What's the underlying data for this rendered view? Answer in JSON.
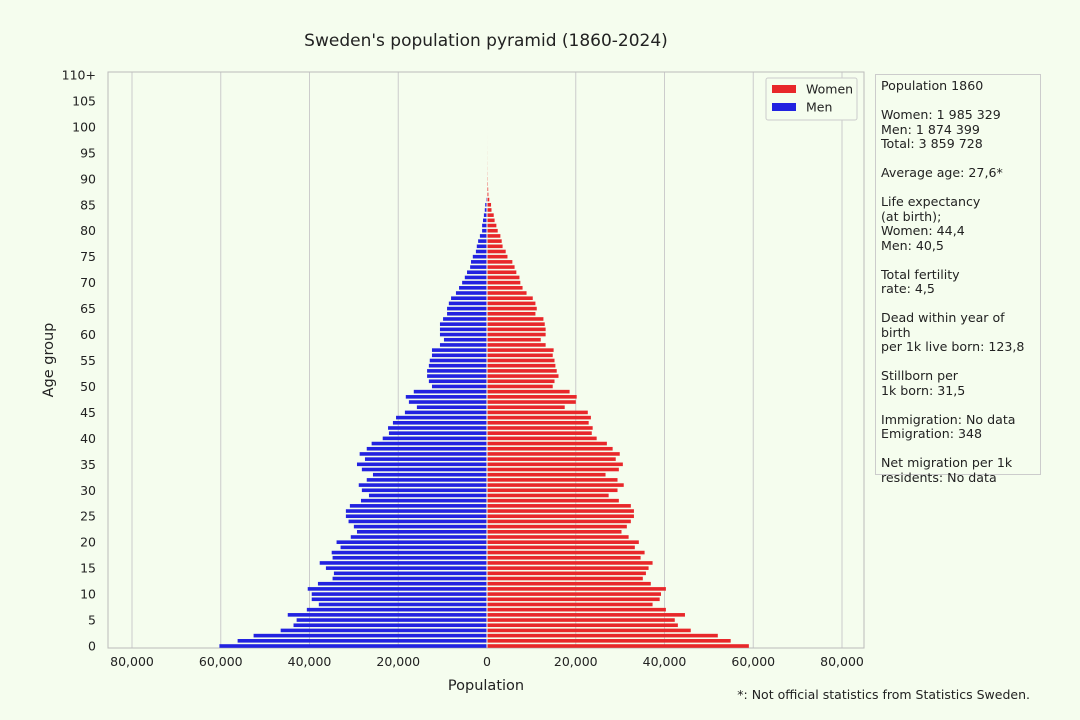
{
  "chart_data": {
    "type": "bar",
    "orientation": "horizontal",
    "title": "Sweden's population pyramid (1860-2024)",
    "xlabel": "Population",
    "ylabel": "Age group",
    "xlim": [
      -85000,
      85000
    ],
    "ylim": [
      0,
      110
    ],
    "x_ticks": [
      -80000,
      -60000,
      -40000,
      -20000,
      0,
      20000,
      40000,
      60000,
      80000
    ],
    "x_tick_labels": [
      "80,000",
      "60,000",
      "40,000",
      "20,000",
      "0",
      "20,000",
      "40,000",
      "60,000",
      "80,000"
    ],
    "y_ticks": [
      0,
      5,
      10,
      15,
      20,
      25,
      30,
      35,
      40,
      45,
      50,
      55,
      60,
      65,
      70,
      75,
      80,
      85,
      90,
      95,
      100,
      105,
      110
    ],
    "y_tick_labels": [
      "0",
      "5",
      "10",
      "15",
      "20",
      "25",
      "30",
      "35",
      "40",
      "45",
      "50",
      "55",
      "60",
      "65",
      "70",
      "75",
      "80",
      "85",
      "90",
      "95",
      "100",
      "105",
      "110+"
    ],
    "grid": "vertical",
    "legend_position": "top-right",
    "ages": "0..110",
    "series": [
      {
        "name": "Women",
        "color": "#e8272a",
        "values": [
          58900,
          54800,
          51900,
          45800,
          42900,
          42200,
          44500,
          40200,
          37200,
          38800,
          39100,
          40200,
          36800,
          35000,
          35700,
          36300,
          37200,
          34500,
          35400,
          33200,
          34100,
          31800,
          30200,
          31400,
          32300,
          33000,
          33000,
          32300,
          29600,
          27300,
          29300,
          30700,
          29300,
          26600,
          29600,
          30500,
          28900,
          29800,
          28200,
          26900,
          24600,
          23500,
          23700,
          22800,
          23300,
          22600,
          17400,
          19900,
          20100,
          18500,
          14700,
          15100,
          16000,
          15600,
          15300,
          15100,
          14700,
          14900,
          13100,
          12000,
          13100,
          13100,
          12900,
          12600,
          10800,
          11100,
          10800,
          10200,
          8800,
          7900,
          7400,
          7200,
          6500,
          6100,
          5600,
          4500,
          4100,
          3400,
          3200,
          2900,
          2300,
          2000,
          1600,
          1400,
          900,
          800,
          400,
          200,
          150,
          80,
          50,
          30,
          20,
          15,
          10,
          10,
          5,
          3,
          2,
          1,
          1,
          0,
          0,
          0,
          0,
          0,
          0,
          0,
          0,
          0,
          0
        ]
      },
      {
        "name": "Men",
        "color": "#2222e0",
        "values": [
          60300,
          56200,
          52600,
          46500,
          43600,
          42900,
          44900,
          40600,
          37900,
          39500,
          39500,
          40400,
          38100,
          34800,
          34500,
          36300,
          37700,
          34800,
          35000,
          33000,
          33900,
          30700,
          29300,
          30000,
          31200,
          31800,
          31800,
          30900,
          28400,
          26600,
          28200,
          28900,
          27100,
          25700,
          28200,
          29300,
          27500,
          28700,
          27100,
          26000,
          23500,
          22100,
          22300,
          21200,
          20500,
          18500,
          15800,
          17600,
          18300,
          16500,
          12400,
          13100,
          13500,
          13500,
          13100,
          12900,
          12400,
          12400,
          10600,
          9700,
          10600,
          10600,
          10600,
          9900,
          9000,
          9000,
          8600,
          8100,
          7000,
          6300,
          5600,
          5000,
          4500,
          3800,
          3600,
          3200,
          2500,
          2300,
          2000,
          1600,
          1100,
          1100,
          900,
          700,
          500,
          400,
          200,
          100,
          80,
          40,
          20,
          10,
          8,
          5,
          4,
          3,
          2,
          1,
          1,
          0,
          0,
          0,
          0,
          0,
          0,
          0,
          0,
          0,
          0,
          0,
          0
        ]
      }
    ]
  },
  "info": "Population 1860\n\nWomen: 1 985 329\nMen: 1 874 399\nTotal: 3 859 728\n\nAverage age: 27,6*\n\nLife expectancy\n(at birth);\nWomen: 44,4\nMen: 40,5\n\nTotal fertility\nrate: 4,5\n\nDead within year of birth\nper 1k live born: 123,8\n\nStillborn per\n1k born: 31,5\n\nImmigration: No data\nEmigration: 348\n\nNet migration per 1k\nresidents: No data",
  "footnote": "*: Not official statistics from Statistics Sweden."
}
